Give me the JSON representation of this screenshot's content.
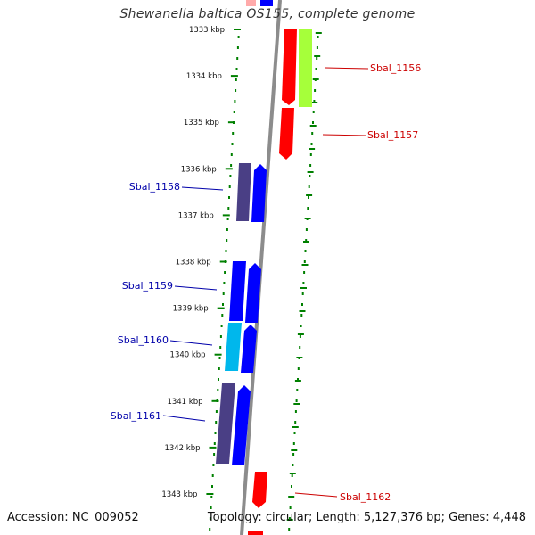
{
  "title": "Shewanella baltica OS155, complete genome",
  "footer": {
    "accession": "Accession: NC_009052",
    "topology": "Topology: circular; Length: 5,127,376 bp; Genes: 4,448"
  },
  "scale": {
    "ticks": [
      {
        "kbp": 1333,
        "label": "1333 kbp"
      },
      {
        "kbp": 1334,
        "label": "1334 kbp"
      },
      {
        "kbp": 1335,
        "label": "1335 kbp"
      },
      {
        "kbp": 1336,
        "label": "1336 kbp"
      },
      {
        "kbp": 1337,
        "label": "1337 kbp"
      },
      {
        "kbp": 1338,
        "label": "1338 kbp"
      },
      {
        "kbp": 1339,
        "label": "1339 kbp"
      },
      {
        "kbp": 1340,
        "label": "1340 kbp"
      },
      {
        "kbp": 1341,
        "label": "1341 kbp"
      },
      {
        "kbp": 1342,
        "label": "1342 kbp"
      },
      {
        "kbp": 1343,
        "label": "1343 kbp"
      }
    ]
  },
  "colors": {
    "forward": "#ff0000",
    "reverse": "#0000ff",
    "reverse_dark": "#4a3f85",
    "cyan": "#00b7ec",
    "lime": "#a6ff3a",
    "pink": "#ffaaaa",
    "backbone": "#8c8c8c",
    "dots": "#008000",
    "label_forward": "#cc0000",
    "label_reverse": "#0000aa"
  },
  "genes": [
    {
      "label": "Sbal_1156",
      "strand": "forward"
    },
    {
      "label": "Sbal_1157",
      "strand": "forward"
    },
    {
      "label": "Sbal_1158",
      "strand": "reverse"
    },
    {
      "label": "Sbal_1159",
      "strand": "reverse"
    },
    {
      "label": "Sbal_1160",
      "strand": "reverse"
    },
    {
      "label": "Sbal_1161",
      "strand": "reverse"
    },
    {
      "label": "Sbal_1162",
      "strand": "forward"
    }
  ]
}
